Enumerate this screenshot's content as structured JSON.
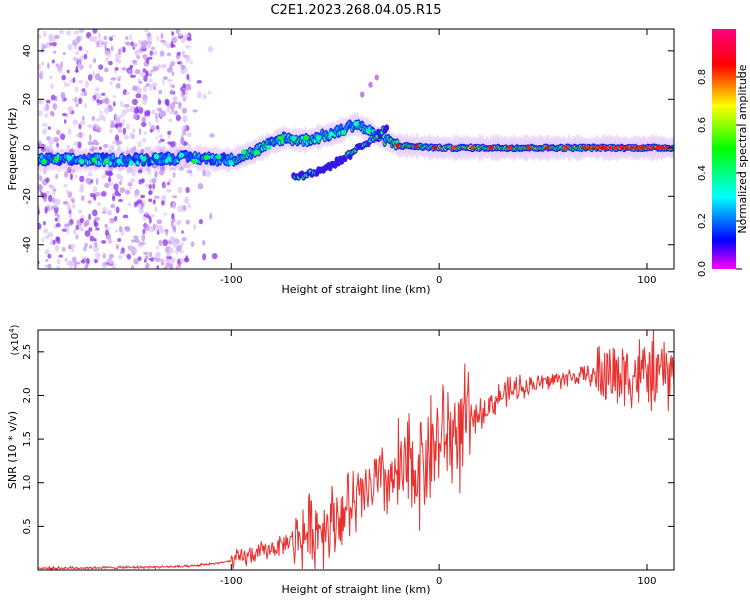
{
  "figure": {
    "title": "C2E1.2023.268.04.05.R15"
  },
  "chart_data": [
    {
      "type": "heatmap",
      "xlabel": "Height of straight line (km)",
      "ylabel": "Frequency (Hz)",
      "xlim": [
        -193,
        113
      ],
      "ylim": [
        -50,
        49
      ],
      "xticks": [
        -100,
        0,
        100
      ],
      "yticks": [
        -40,
        -20,
        0,
        20,
        40
      ],
      "colorbar": {
        "label": "Normalized spectral amplitude",
        "range": [
          0,
          1
        ],
        "ticks": [
          0.0,
          0.2,
          0.4,
          0.6,
          0.8
        ],
        "colormap": [
          "#ff00ff",
          "#0000ff",
          "#00ffff",
          "#00ff00",
          "#ffff00",
          "#ff0000",
          "#ff00ff"
        ]
      },
      "features": {
        "main_line": [
          {
            "x": -193,
            "y": -5
          },
          {
            "x": -150,
            "y": -5
          },
          {
            "x": -120,
            "y": -4
          },
          {
            "x": -100,
            "y": -5
          },
          {
            "x": -90,
            "y": -2
          },
          {
            "x": -75,
            "y": 4
          },
          {
            "x": -65,
            "y": 3
          },
          {
            "x": -50,
            "y": 6
          },
          {
            "x": -40,
            "y": 10
          },
          {
            "x": -30,
            "y": 5
          },
          {
            "x": -20,
            "y": 1
          },
          {
            "x": 0,
            "y": 0
          },
          {
            "x": 50,
            "y": 0
          },
          {
            "x": 113,
            "y": 0
          }
        ],
        "secondary_branch": [
          {
            "x": -70,
            "y": -12
          },
          {
            "x": -58,
            "y": -10
          },
          {
            "x": -45,
            "y": -4
          },
          {
            "x": -35,
            "y": 2
          },
          {
            "x": -25,
            "y": 8
          }
        ],
        "scatter_region_x": [
          -193,
          -120
        ]
      }
    },
    {
      "type": "line",
      "xlabel": "Height of straight line (km)",
      "ylabel": "SNR (10 * v/v)",
      "ylabel_scale": "(x10",
      "ylabel_exponent": "4",
      "xlim": [
        -193,
        113
      ],
      "ylim": [
        0,
        2.75
      ],
      "xticks": [
        -100,
        0,
        100
      ],
      "yticks": [
        0.5,
        1.0,
        1.5,
        2.0,
        2.5
      ],
      "line_color": "#e8302f",
      "trend": [
        {
          "x": -193,
          "y": 0.02
        },
        {
          "x": -150,
          "y": 0.03
        },
        {
          "x": -120,
          "y": 0.04
        },
        {
          "x": -100,
          "y": 0.1
        },
        {
          "x": -80,
          "y": 0.25
        },
        {
          "x": -60,
          "y": 0.45
        },
        {
          "x": -40,
          "y": 0.75
        },
        {
          "x": -30,
          "y": 1.0
        },
        {
          "x": -20,
          "y": 1.05
        },
        {
          "x": -10,
          "y": 1.2
        },
        {
          "x": 0,
          "y": 1.5
        },
        {
          "x": 10,
          "y": 1.6
        },
        {
          "x": 20,
          "y": 1.8
        },
        {
          "x": 30,
          "y": 2.0
        },
        {
          "x": 40,
          "y": 2.1
        },
        {
          "x": 60,
          "y": 2.2
        },
        {
          "x": 80,
          "y": 2.25
        },
        {
          "x": 113,
          "y": 2.25
        }
      ]
    }
  ]
}
